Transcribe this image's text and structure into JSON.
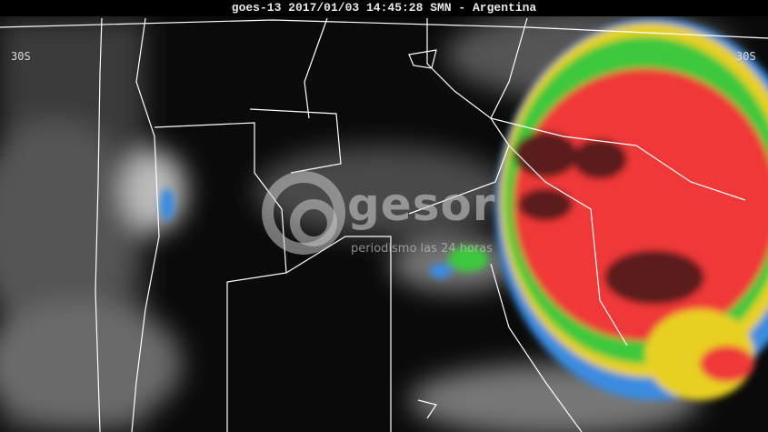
{
  "header": {
    "title": "goes-13 2017/01/03 14:45:28 SMN - Argentina"
  },
  "labels": {
    "lat_left": "30S",
    "lat_right": "30S"
  },
  "watermark": {
    "brand": "gesor",
    "symbol": "@",
    "tagline": "periodismo las 24 horas"
  },
  "colors": {
    "storm_red": "#f03838",
    "core_brown": "#5a1a1a",
    "green": "#3cc83c",
    "yellow": "#e8d020",
    "blue": "#3a8ce0",
    "cloud_gray": "#9a9a9a",
    "border": "#ffffff"
  }
}
